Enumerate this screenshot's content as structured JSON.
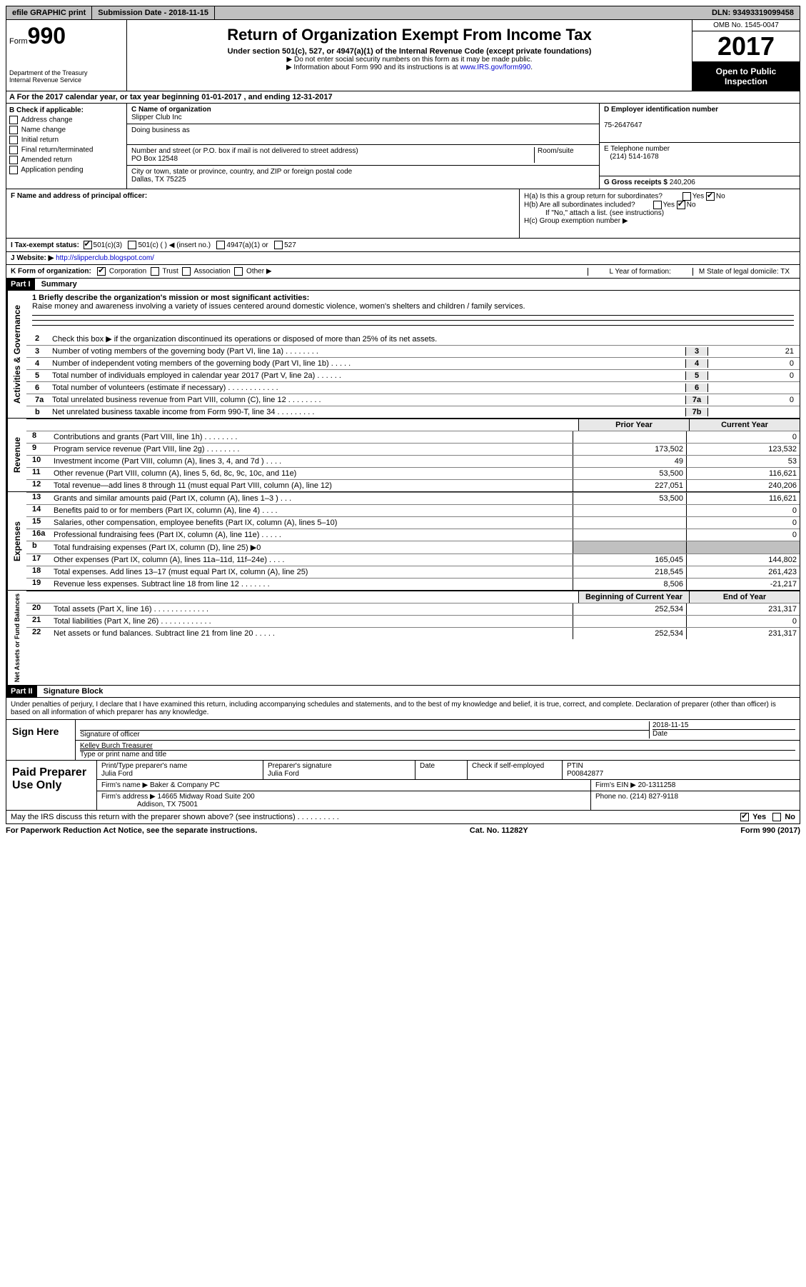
{
  "top": {
    "efile": "efile GRAPHIC print",
    "submission": "Submission Date - 2018-11-15",
    "dln": "DLN: 93493319099458"
  },
  "header": {
    "form_label": "Form",
    "form_num": "990",
    "dept": "Department of the Treasury\nInternal Revenue Service",
    "title": "Return of Organization Exempt From Income Tax",
    "subtitle": "Under section 501(c), 527, or 4947(a)(1) of the Internal Revenue Code (except private foundations)",
    "note1": "▶ Do not enter social security numbers on this form as it may be made public.",
    "note2_pre": "▶ Information about Form 990 and its instructions is at ",
    "note2_link": "www.IRS.gov/form990",
    "omb": "OMB No. 1545-0047",
    "year": "2017",
    "open": "Open to Public Inspection"
  },
  "sectionA": "A   For the 2017 calendar year, or tax year beginning 01-01-2017    , and ending 12-31-2017",
  "colB": {
    "title": "B Check if applicable:",
    "items": [
      "Address change",
      "Name change",
      "Initial return",
      "Final return/terminated",
      "Amended return",
      "Application pending"
    ]
  },
  "colC": {
    "name_label": "C Name of organization",
    "name": "Slipper Club Inc",
    "dba_label": "Doing business as",
    "addr_label": "Number and street (or P.O. box if mail is not delivered to street address)",
    "room_label": "Room/suite",
    "addr": "PO Box 12548",
    "city_label": "City or town, state or province, country, and ZIP or foreign postal code",
    "city": "Dallas, TX  75225"
  },
  "colD": {
    "ein_label": "D Employer identification number",
    "ein": "75-2647647",
    "phone_label": "E Telephone number",
    "phone": "(214) 514-1678",
    "gross_label": "G Gross receipts $",
    "gross": "240,206"
  },
  "rowF": {
    "left_label": "F Name and address of principal officer:",
    "ha": "H(a)  Is this a group return for subordinates?",
    "hb": "H(b)  Are all subordinates included?",
    "hb_note": "If \"No,\" attach a list. (see instructions)",
    "hc": "H(c)  Group exemption number ▶"
  },
  "rowI": {
    "label": "I   Tax-exempt status:",
    "opts": [
      "501(c)(3)",
      "501(c) (  ) ◀ (insert no.)",
      "4947(a)(1) or",
      "527"
    ]
  },
  "rowJ": {
    "label": "J   Website: ▶",
    "url": "http://slipperclub.blogspot.com/"
  },
  "rowK": {
    "left": "K Form of organization:",
    "opts": [
      "Corporation",
      "Trust",
      "Association",
      "Other ▶"
    ],
    "l": "L Year of formation:",
    "m": "M State of legal domicile: TX"
  },
  "part1": {
    "header": "Part I",
    "title": "Summary",
    "side1": "Activities & Governance",
    "mission_label": "1   Briefly describe the organization's mission or most significant activities:",
    "mission": "Raise money and awareness involving a variety of issues centered around domestic violence, women's shelters and children / family services.",
    "line2": "Check this box ▶        if the organization discontinued its operations or disposed of more than 25% of its net assets.",
    "lines": [
      {
        "n": "3",
        "d": "Number of voting members of the governing body (Part VI, line 1a)   .    .    .    .    .    .    .    .",
        "b": "3",
        "v": "21"
      },
      {
        "n": "4",
        "d": "Number of independent voting members of the governing body (Part VI, line 1b)   .    .    .    .    .",
        "b": "4",
        "v": "0"
      },
      {
        "n": "5",
        "d": "Total number of individuals employed in calendar year 2017 (Part V, line 2a)   .    .    .    .    .    .",
        "b": "5",
        "v": "0"
      },
      {
        "n": "6",
        "d": "Total number of volunteers (estimate if necessary)   .    .    .    .    .    .    .    .    .    .    .    .",
        "b": "6",
        "v": ""
      },
      {
        "n": "7a",
        "d": "Total unrelated business revenue from Part VIII, column (C), line 12   .    .    .    .    .    .    .    .",
        "b": "7a",
        "v": "0"
      },
      {
        "n": "b",
        "d": "Net unrelated business taxable income from Form 990-T, line 34   .    .    .    .    .    .    .    .    .",
        "b": "7b",
        "v": ""
      }
    ]
  },
  "revenue": {
    "side": "Revenue",
    "col1": "Prior Year",
    "col2": "Current Year",
    "lines": [
      {
        "n": "8",
        "d": "Contributions and grants (Part VIII, line 1h)   .    .    .    .    .    .    .    .",
        "v1": "",
        "v2": "0"
      },
      {
        "n": "9",
        "d": "Program service revenue (Part VIII, line 2g)   .    .    .    .    .    .    .    .",
        "v1": "173,502",
        "v2": "123,532"
      },
      {
        "n": "10",
        "d": "Investment income (Part VIII, column (A), lines 3, 4, and 7d )   .    .    .    .",
        "v1": "49",
        "v2": "53"
      },
      {
        "n": "11",
        "d": "Other revenue (Part VIII, column (A), lines 5, 6d, 8c, 9c, 10c, and 11e)",
        "v1": "53,500",
        "v2": "116,621"
      },
      {
        "n": "12",
        "d": "Total revenue—add lines 8 through 11 (must equal Part VIII, column (A), line 12)",
        "v1": "227,051",
        "v2": "240,206"
      }
    ]
  },
  "expenses": {
    "side": "Expenses",
    "lines": [
      {
        "n": "13",
        "d": "Grants and similar amounts paid (Part IX, column (A), lines 1–3 )   .    .    .",
        "v1": "53,500",
        "v2": "116,621"
      },
      {
        "n": "14",
        "d": "Benefits paid to or for members (Part IX, column (A), line 4)   .    .    .    .",
        "v1": "",
        "v2": "0"
      },
      {
        "n": "15",
        "d": "Salaries, other compensation, employee benefits (Part IX, column (A), lines 5–10)",
        "v1": "",
        "v2": "0"
      },
      {
        "n": "16a",
        "d": "Professional fundraising fees (Part IX, column (A), line 11e)   .    .    .    .    .",
        "v1": "",
        "v2": "0"
      },
      {
        "n": "b",
        "d": "Total fundraising expenses (Part IX, column (D), line 25) ▶0",
        "v1": "shaded",
        "v2": "shaded"
      },
      {
        "n": "17",
        "d": "Other expenses (Part IX, column (A), lines 11a–11d, 11f–24e)   .    .    .    .",
        "v1": "165,045",
        "v2": "144,802"
      },
      {
        "n": "18",
        "d": "Total expenses. Add lines 13–17 (must equal Part IX, column (A), line 25)",
        "v1": "218,545",
        "v2": "261,423"
      },
      {
        "n": "19",
        "d": "Revenue less expenses. Subtract line 18 from line 12 .    .    .    .    .    .    .",
        "v1": "8,506",
        "v2": "-21,217"
      }
    ]
  },
  "netassets": {
    "side": "Net Assets or Fund Balances",
    "col1": "Beginning of Current Year",
    "col2": "End of Year",
    "lines": [
      {
        "n": "20",
        "d": "Total assets (Part X, line 16)  .    .    .    .    .    .    .    .    .    .    .    .    .",
        "v1": "252,534",
        "v2": "231,317"
      },
      {
        "n": "21",
        "d": "Total liabilities (Part X, line 26)  .    .    .    .    .    .    .    .    .    .    .    .",
        "v1": "",
        "v2": "0"
      },
      {
        "n": "22",
        "d": "Net assets or fund balances. Subtract line 21 from line 20  .    .    .    .    .",
        "v1": "252,534",
        "v2": "231,317"
      }
    ]
  },
  "part2": {
    "header": "Part II",
    "title": "Signature Block",
    "penalty": "Under penalties of perjury, I declare that I have examined this return, including accompanying schedules and statements, and to the best of my knowledge and belief, it is true, correct, and complete. Declaration of preparer (other than officer) is based on all information of which preparer has any knowledge.",
    "sign_here": "Sign Here",
    "sig_officer": "Signature of officer",
    "sig_date": "2018-11-15",
    "date_label": "Date",
    "officer_name": "Kelley Burch Treasurer",
    "name_title_label": "Type or print name and title",
    "paid_label": "Paid Preparer Use Only",
    "prep_name_label": "Print/Type preparer's name",
    "prep_name": "Julia Ford",
    "prep_sig_label": "Preparer's signature",
    "prep_sig": "Julia Ford",
    "prep_date_label": "Date",
    "check_self": "Check         if self-employed",
    "ptin_label": "PTIN",
    "ptin": "P00842877",
    "firm_label": "Firm's name     ▶",
    "firm": "Baker & Company PC",
    "firm_ein_label": "Firm's EIN ▶",
    "firm_ein": "20-1311258",
    "firm_addr_label": "Firm's address ▶",
    "firm_addr": "14665 Midway Road Suite 200",
    "firm_city": "Addison, TX  75001",
    "firm_phone_label": "Phone no.",
    "firm_phone": "(214) 827-9118",
    "discuss": "May the IRS discuss this return with the preparer shown above? (see instructions)   .    .    .    .    .    .    .    .    .    .",
    "yes": "Yes",
    "no": "No"
  },
  "footer": {
    "left": "For Paperwork Reduction Act Notice, see the separate instructions.",
    "mid": "Cat. No. 11282Y",
    "right": "Form 990 (2017)"
  }
}
